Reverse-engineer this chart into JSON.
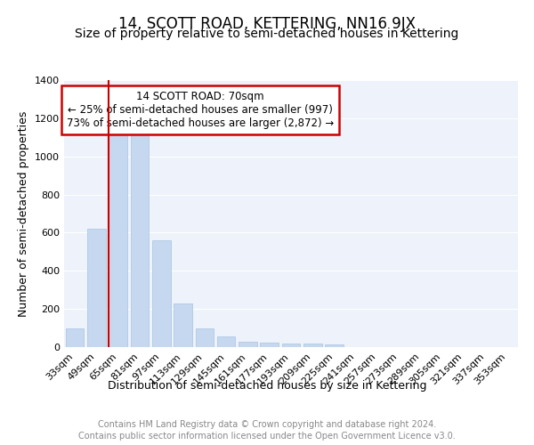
{
  "title": "14, SCOTT ROAD, KETTERING, NN16 9JX",
  "subtitle": "Size of property relative to semi-detached houses in Kettering",
  "xlabel": "Distribution of semi-detached houses by size in Kettering",
  "ylabel": "Number of semi-detached properties",
  "footnote1": "Contains HM Land Registry data © Crown copyright and database right 2024.",
  "footnote2": "Contains public sector information licensed under the Open Government Licence v3.0.",
  "categories": [
    "33sqm",
    "49sqm",
    "65sqm",
    "81sqm",
    "97sqm",
    "113sqm",
    "129sqm",
    "145sqm",
    "161sqm",
    "177sqm",
    "193sqm",
    "209sqm",
    "225sqm",
    "241sqm",
    "257sqm",
    "273sqm",
    "289sqm",
    "305sqm",
    "321sqm",
    "337sqm",
    "353sqm"
  ],
  "values": [
    100,
    620,
    1130,
    1130,
    560,
    230,
    100,
    55,
    30,
    25,
    20,
    20,
    15,
    0,
    0,
    0,
    0,
    0,
    0,
    0,
    0
  ],
  "bar_color": "#c5d8f0",
  "bar_edge_color": "#a8c4e0",
  "highlight_line_color": "#cc0000",
  "red_line_x": 2,
  "annotation_text1": "14 SCOTT ROAD: 70sqm",
  "annotation_text2": "← 25% of semi-detached houses are smaller (997)",
  "annotation_text3": "73% of semi-detached houses are larger (2,872) →",
  "annotation_box_color": "#cc0000",
  "ylim": [
    0,
    1400
  ],
  "yticks": [
    0,
    200,
    400,
    600,
    800,
    1000,
    1200,
    1400
  ],
  "bg_color": "#edf2fb",
  "grid_color": "#ffffff",
  "title_fontsize": 12,
  "subtitle_fontsize": 10,
  "axis_label_fontsize": 9,
  "tick_fontsize": 8,
  "footnote_fontsize": 7
}
